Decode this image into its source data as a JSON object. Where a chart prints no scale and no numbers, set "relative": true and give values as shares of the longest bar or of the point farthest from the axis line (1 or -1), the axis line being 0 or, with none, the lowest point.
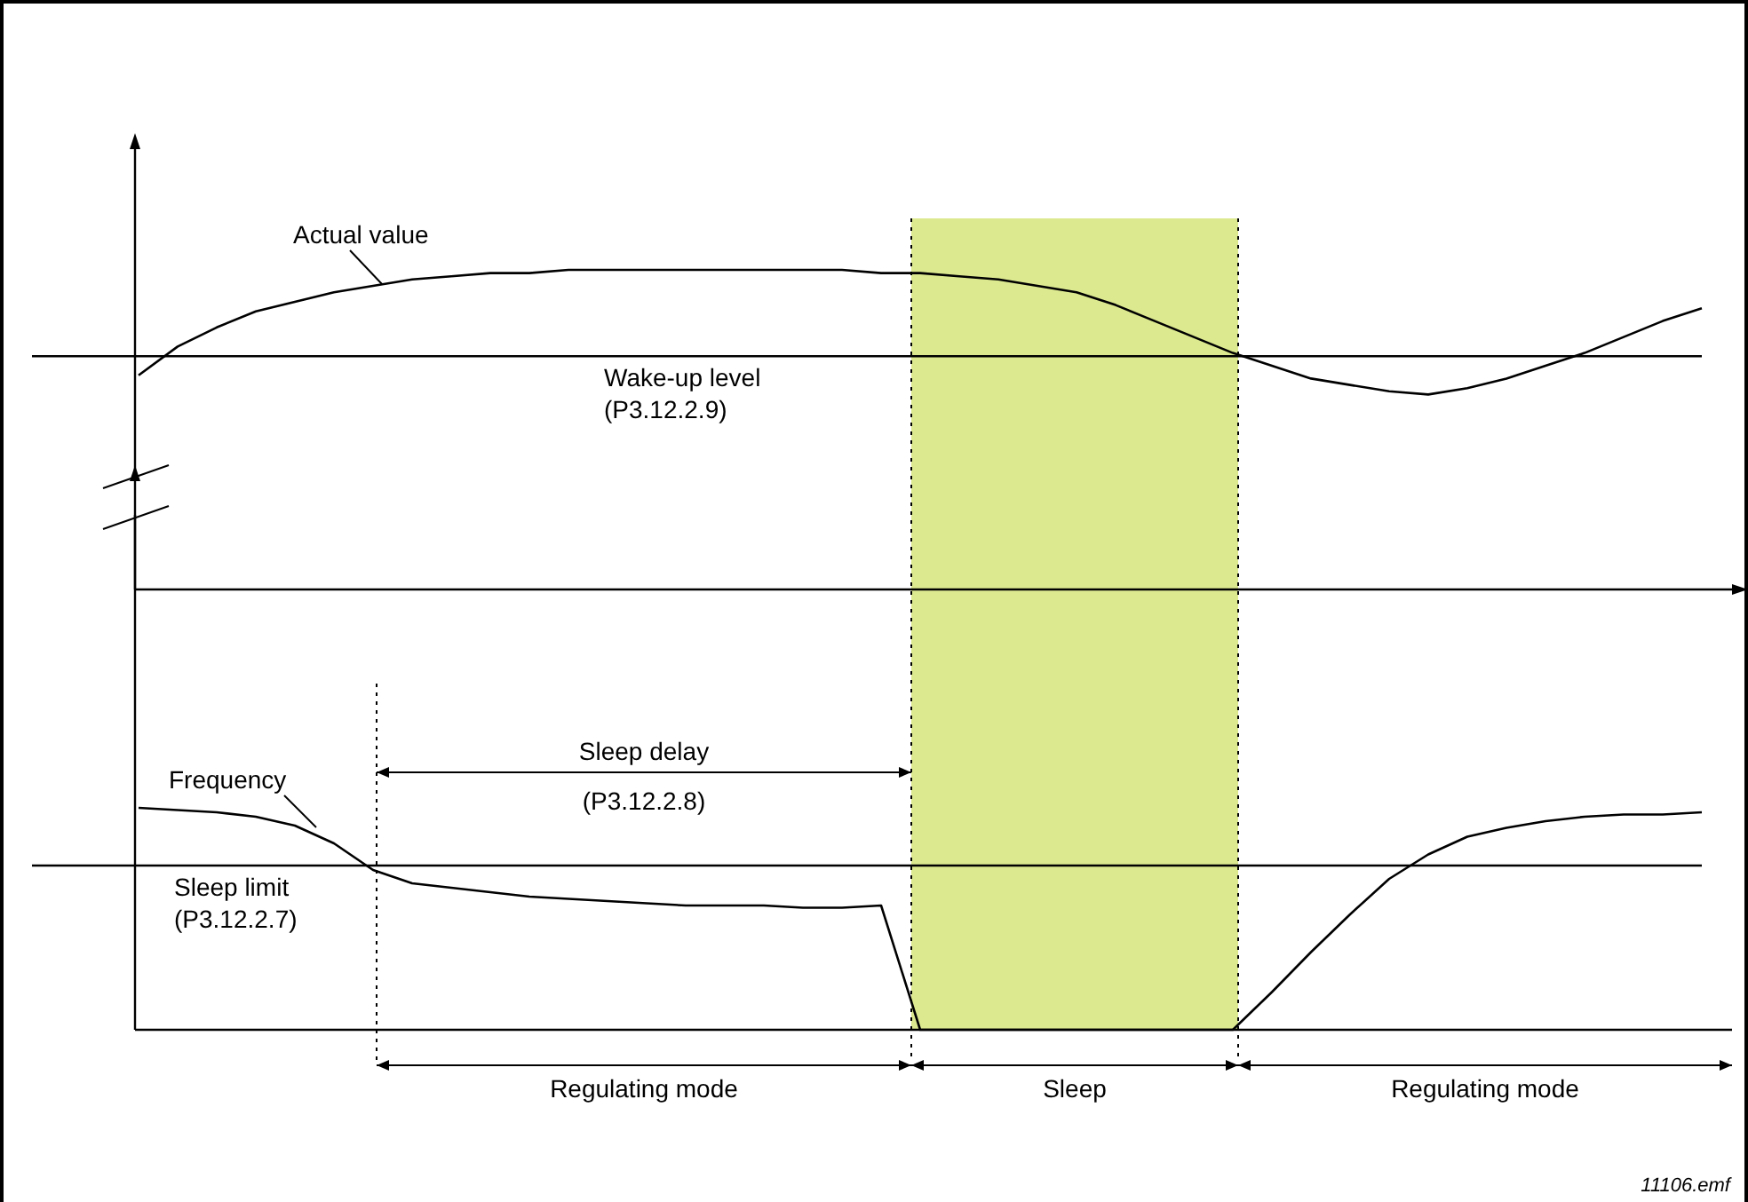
{
  "chart_data": [
    {
      "type": "line",
      "relative": true,
      "tick_labels": false,
      "categories": [
        null,
        null,
        null,
        null,
        null,
        null,
        null,
        null,
        null,
        null,
        null,
        null,
        null,
        null,
        null,
        null,
        null,
        null,
        null,
        null,
        null,
        null,
        null,
        null,
        null,
        null,
        null,
        null,
        null,
        null,
        null,
        null,
        null,
        null,
        null,
        null,
        null,
        null,
        null,
        null,
        null
      ],
      "series": [
        {
          "name": "Actual value",
          "color": "#000000",
          "values": [
            0.67,
            0.76,
            0.82,
            0.87,
            0.9,
            0.93,
            0.95,
            0.97,
            0.98,
            0.99,
            0.99,
            1.0,
            1.0,
            1.0,
            1.0,
            1.0,
            1.0,
            1.0,
            1.0,
            0.99,
            0.99,
            0.98,
            0.97,
            0.95,
            0.93,
            0.89,
            0.84,
            0.79,
            0.74,
            0.7,
            0.66,
            0.64,
            0.62,
            0.61,
            0.63,
            0.66,
            0.7,
            0.74,
            0.79,
            0.84,
            0.88
          ]
        }
      ],
      "ref_lines": [
        {
          "axis": "y",
          "value": 0.73,
          "label": "Wake-up level\n(P3.12.2.9)",
          "color": "#000000"
        }
      ]
    },
    {
      "type": "line",
      "relative": true,
      "tick_labels": false,
      "categories": [
        null,
        null,
        null,
        null,
        null,
        null,
        null,
        null,
        null,
        null,
        null,
        null,
        null,
        null,
        null,
        null,
        null,
        null,
        null,
        null,
        null,
        null,
        null,
        null,
        null,
        null,
        null,
        null,
        null,
        null,
        null,
        null,
        null,
        null,
        null,
        null,
        null,
        null,
        null,
        null,
        null
      ],
      "series": [
        {
          "name": "Frequency",
          "color": "#000000",
          "values": [
            1.0,
            0.99,
            0.98,
            0.96,
            0.92,
            0.84,
            0.72,
            0.66,
            0.64,
            0.62,
            0.6,
            0.59,
            0.58,
            0.57,
            0.56,
            0.56,
            0.56,
            0.55,
            0.55,
            0.56,
            0,
            0,
            0,
            0,
            0,
            0,
            0,
            0,
            0,
            0.17,
            0.35,
            0.52,
            0.68,
            0.79,
            0.87,
            0.91,
            0.94,
            0.96,
            0.97,
            0.97,
            0.98
          ]
        }
      ],
      "ref_lines": [
        {
          "axis": "y",
          "value": 0.74,
          "label": "Sleep limit\n(P3.12.2.7)",
          "color": "#000000"
        }
      ],
      "annotations": [
        "Sleep delay\n(P3.12.2.8)",
        "Regulating mode",
        "Sleep",
        "Regulating mode",
        "11106.emf"
      ]
    }
  ]
}
